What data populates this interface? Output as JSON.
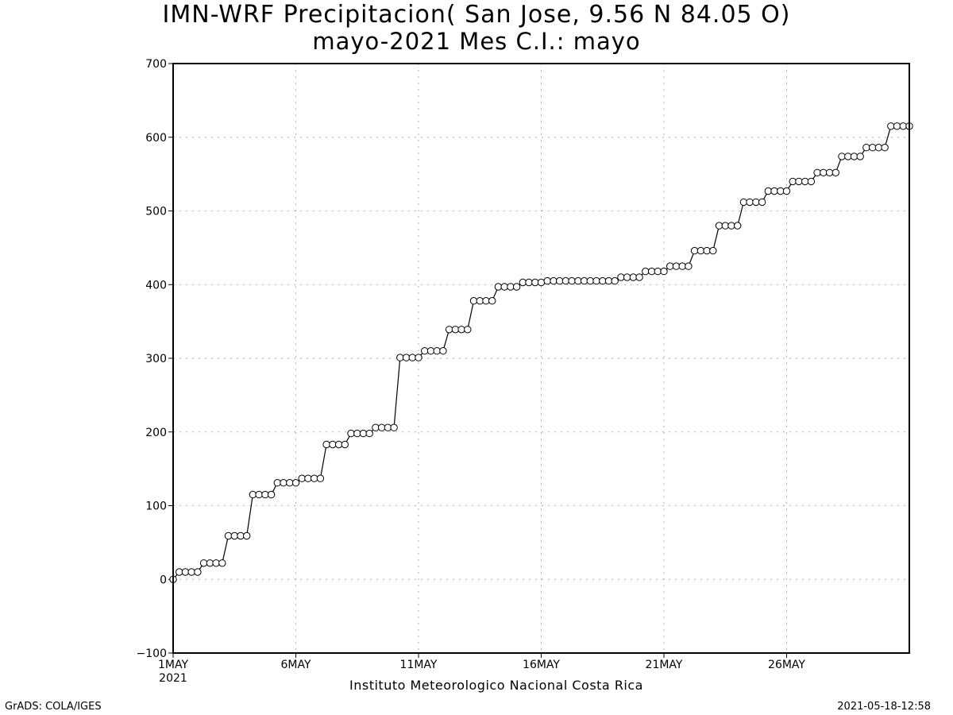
{
  "title_line1": "IMN-WRF  Precipitacion( San Jose, 9.56  N 84.05  O)",
  "title_line2": "mayo-2021 Mes C.I.: mayo",
  "credit": "Instituto Meteorologico Nacional Costa Rica",
  "footer_left": "GrADS: COLA/IGES",
  "footer_right": "2021-05-18-12:58",
  "colors": {
    "line": "#000000",
    "grid": "#b0b0b0",
    "marker_fill": "#ffffff"
  },
  "chart_data": {
    "type": "line",
    "title": "IMN-WRF  Precipitacion( San Jose, 9.56  N 84.05  O)",
    "subtitle": "mayo-2021 Mes C.I.: mayo",
    "xlabel": "",
    "ylabel": "",
    "grid": true,
    "marker": "open-circle",
    "ylim": [
      -100,
      700
    ],
    "yticks": [
      -100,
      0,
      100,
      200,
      300,
      400,
      500,
      600,
      700
    ],
    "xlim_day": [
      1,
      31
    ],
    "xticks": [
      {
        "day": 1,
        "label": "1MAY",
        "sub": "2021"
      },
      {
        "day": 6,
        "label": "6MAY",
        "sub": ""
      },
      {
        "day": 11,
        "label": "11MAY",
        "sub": ""
      },
      {
        "day": 16,
        "label": "16MAY",
        "sub": ""
      },
      {
        "day": 21,
        "label": "21MAY",
        "sub": ""
      },
      {
        "day": 26,
        "label": "26MAY",
        "sub": ""
      }
    ],
    "x_step_days": 0.25,
    "x_start_day": 1,
    "values": [
      0,
      10,
      10,
      10,
      10,
      22,
      22,
      22,
      22,
      59,
      59,
      59,
      59,
      115,
      115,
      115,
      115,
      131,
      131,
      131,
      131,
      137,
      137,
      137,
      137,
      183,
      183,
      183,
      183,
      198,
      198,
      198,
      198,
      206,
      206,
      206,
      206,
      301,
      301,
      301,
      301,
      310,
      310,
      310,
      310,
      339,
      339,
      339,
      339,
      378,
      378,
      378,
      378,
      397,
      397,
      397,
      397,
      403,
      403,
      403,
      403,
      405,
      405,
      405,
      405,
      405,
      405,
      405,
      405,
      405,
      405,
      405,
      405,
      410,
      410,
      410,
      410,
      418,
      418,
      418,
      418,
      425,
      425,
      425,
      425,
      446,
      446,
      446,
      446,
      480,
      480,
      480,
      480,
      512,
      512,
      512,
      512,
      527,
      527,
      527,
      527,
      540,
      540,
      540,
      540,
      552,
      552,
      552,
      552,
      574,
      574,
      574,
      574,
      586,
      586,
      586,
      586,
      615,
      615,
      615,
      615
    ]
  }
}
